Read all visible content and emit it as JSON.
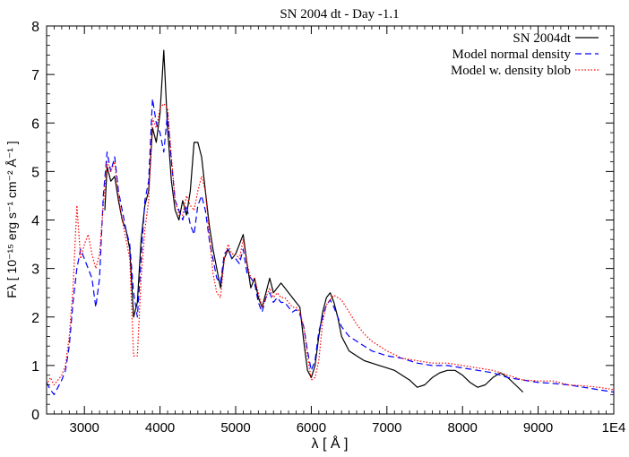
{
  "chart_data": {
    "type": "line",
    "title": "SN 2004 dt - Day -1.1",
    "xlabel": "λ [ Å ]",
    "ylabel": "Fλ [ 10⁻¹⁵ erg s⁻¹ cm⁻² Å⁻¹ ]",
    "xlim": [
      2500,
      10000
    ],
    "ylim": [
      0,
      8
    ],
    "x_ticks": [
      3000,
      4000,
      5000,
      6000,
      7000,
      8000,
      9000,
      10000
    ],
    "x_tick_labels": [
      "3000",
      "4000",
      "5000",
      "6000",
      "7000",
      "8000",
      "9000",
      "1E4"
    ],
    "y_ticks": [
      0,
      1,
      2,
      3,
      4,
      5,
      6,
      7,
      8
    ],
    "y_tick_labels": [
      "0",
      "1",
      "2",
      "3",
      "4",
      "5",
      "6",
      "7",
      "8"
    ],
    "grid": false,
    "legend_position": "top-right",
    "series": [
      {
        "name": "SN 2004dt",
        "color": "#000000",
        "dash": "solid",
        "x": [
          3270,
          3300,
          3350,
          3400,
          3450,
          3500,
          3550,
          3600,
          3650,
          3700,
          3750,
          3800,
          3850,
          3900,
          3950,
          4000,
          4050,
          4100,
          4150,
          4200,
          4250,
          4300,
          4350,
          4400,
          4450,
          4500,
          4550,
          4600,
          4650,
          4700,
          4750,
          4800,
          4850,
          4900,
          4950,
          5000,
          5050,
          5100,
          5150,
          5200,
          5250,
          5300,
          5350,
          5400,
          5450,
          5500,
          5550,
          5600,
          5650,
          5700,
          5750,
          5800,
          5850,
          5900,
          5950,
          6000,
          6050,
          6100,
          6150,
          6200,
          6250,
          6300,
          6350,
          6400,
          6500,
          6600,
          6700,
          6800,
          6900,
          7000,
          7100,
          7200,
          7300,
          7400,
          7500,
          7600,
          7700,
          7800,
          7900,
          8000,
          8100,
          8200,
          8300,
          8400,
          8500,
          8600,
          8700,
          8800
        ],
        "y": [
          4.2,
          5.1,
          4.8,
          4.9,
          4.4,
          4.0,
          3.8,
          3.4,
          2.0,
          2.3,
          3.6,
          4.3,
          4.6,
          5.9,
          5.6,
          6.2,
          7.5,
          5.9,
          4.8,
          4.2,
          4.0,
          4.4,
          4.1,
          4.6,
          5.6,
          5.6,
          5.3,
          4.6,
          3.9,
          3.4,
          3.0,
          2.6,
          3.2,
          3.4,
          3.2,
          3.3,
          3.5,
          3.7,
          3.1,
          2.6,
          2.8,
          2.4,
          2.2,
          2.5,
          2.8,
          2.5,
          2.6,
          2.7,
          2.6,
          2.5,
          2.4,
          2.3,
          2.2,
          1.5,
          0.9,
          0.75,
          1.0,
          1.6,
          2.1,
          2.4,
          2.5,
          2.3,
          2.0,
          1.6,
          1.3,
          1.2,
          1.1,
          1.05,
          1.0,
          0.95,
          0.9,
          0.8,
          0.7,
          0.55,
          0.6,
          0.75,
          0.85,
          0.9,
          0.9,
          0.8,
          0.65,
          0.55,
          0.6,
          0.75,
          0.85,
          0.75,
          0.6,
          0.45
        ]
      },
      {
        "name": "Model normal density",
        "color": "#0000ff",
        "dash": "dashed",
        "x": [
          2500,
          2550,
          2600,
          2650,
          2700,
          2750,
          2800,
          2850,
          2900,
          2950,
          3000,
          3050,
          3100,
          3150,
          3200,
          3250,
          3300,
          3350,
          3400,
          3450,
          3500,
          3550,
          3600,
          3650,
          3700,
          3750,
          3800,
          3850,
          3900,
          3950,
          4000,
          4050,
          4100,
          4150,
          4200,
          4250,
          4300,
          4350,
          4400,
          4450,
          4500,
          4550,
          4600,
          4650,
          4700,
          4750,
          4800,
          4850,
          4900,
          4950,
          5000,
          5050,
          5100,
          5150,
          5200,
          5250,
          5300,
          5350,
          5400,
          5450,
          5500,
          5550,
          5600,
          5650,
          5700,
          5750,
          5800,
          5850,
          5900,
          5950,
          6000,
          6050,
          6100,
          6150,
          6200,
          6250,
          6300,
          6400,
          6500,
          6600,
          6700,
          6800,
          6900,
          7000,
          7200,
          7400,
          7600,
          7800,
          8000,
          8200,
          8400,
          8500,
          8600,
          8800,
          9000,
          9200,
          9400,
          9600,
          9800,
          10000
        ],
        "y": [
          0.65,
          0.5,
          0.4,
          0.55,
          0.7,
          0.9,
          1.4,
          2.3,
          3.0,
          3.4,
          3.2,
          3.0,
          2.8,
          2.2,
          2.8,
          4.5,
          5.4,
          5.0,
          5.3,
          4.6,
          4.2,
          3.8,
          3.5,
          2.5,
          2.0,
          3.2,
          4.4,
          4.8,
          6.5,
          6.0,
          5.8,
          5.4,
          6.2,
          5.2,
          4.4,
          4.2,
          4.0,
          4.3,
          3.9,
          3.7,
          4.3,
          4.5,
          4.2,
          3.6,
          3.2,
          2.8,
          2.7,
          3.3,
          3.4,
          3.2,
          3.2,
          3.1,
          3.4,
          2.9,
          2.8,
          2.7,
          2.3,
          2.1,
          2.4,
          2.5,
          2.3,
          2.4,
          2.3,
          2.3,
          2.2,
          2.1,
          2.15,
          2.05,
          1.8,
          1.3,
          0.9,
          1.1,
          1.7,
          2.0,
          2.25,
          2.35,
          2.2,
          1.8,
          1.6,
          1.5,
          1.4,
          1.3,
          1.25,
          1.2,
          1.15,
          1.05,
          1.0,
          1.0,
          0.95,
          0.9,
          0.85,
          0.8,
          0.75,
          0.7,
          0.65,
          0.63,
          0.6,
          0.55,
          0.5,
          0.45
        ]
      },
      {
        "name": "Model w. density blob",
        "color": "#ff0000",
        "dash": "dotted",
        "x": [
          2500,
          2550,
          2600,
          2650,
          2700,
          2750,
          2800,
          2850,
          2900,
          2950,
          3000,
          3050,
          3100,
          3150,
          3200,
          3250,
          3300,
          3350,
          3400,
          3450,
          3500,
          3550,
          3600,
          3650,
          3700,
          3750,
          3800,
          3850,
          3900,
          3950,
          4000,
          4050,
          4100,
          4150,
          4200,
          4250,
          4300,
          4350,
          4400,
          4450,
          4500,
          4550,
          4600,
          4650,
          4700,
          4750,
          4800,
          4850,
          4900,
          4950,
          5000,
          5050,
          5100,
          5150,
          5200,
          5250,
          5300,
          5350,
          5400,
          5450,
          5500,
          5550,
          5600,
          5650,
          5700,
          5750,
          5800,
          5850,
          5900,
          5950,
          6000,
          6050,
          6100,
          6150,
          6200,
          6250,
          6300,
          6350,
          6400,
          6500,
          6600,
          6700,
          6800,
          6900,
          7000,
          7200,
          7400,
          7600,
          7800,
          8000,
          8200,
          8400,
          8500,
          8600,
          8800,
          9000,
          9200,
          9400,
          9600,
          9800,
          10000
        ],
        "y": [
          0.6,
          0.75,
          0.6,
          0.7,
          0.8,
          1.0,
          1.6,
          2.6,
          4.3,
          3.2,
          3.5,
          3.7,
          3.3,
          3.0,
          3.3,
          4.3,
          5.2,
          5.0,
          5.2,
          4.5,
          4.0,
          3.6,
          3.2,
          1.2,
          1.2,
          2.8,
          3.8,
          4.4,
          6.1,
          5.9,
          6.3,
          6.4,
          6.3,
          5.3,
          4.4,
          4.1,
          4.1,
          4.5,
          4.3,
          4.2,
          4.6,
          4.9,
          4.6,
          3.7,
          2.9,
          2.5,
          2.4,
          3.2,
          3.5,
          3.3,
          3.3,
          3.2,
          3.6,
          3.1,
          2.8,
          2.8,
          2.5,
          2.2,
          2.4,
          2.6,
          2.4,
          2.5,
          2.4,
          2.4,
          2.3,
          2.2,
          2.2,
          2.1,
          1.8,
          1.2,
          0.7,
          0.75,
          1.1,
          1.9,
          2.25,
          2.35,
          2.45,
          2.4,
          2.35,
          2.1,
          1.85,
          1.65,
          1.5,
          1.4,
          1.3,
          1.15,
          1.1,
          1.05,
          1.05,
          1.0,
          0.95,
          0.9,
          0.85,
          0.8,
          0.7,
          0.68,
          0.68,
          0.6,
          0.58,
          0.55,
          0.5
        ]
      }
    ]
  }
}
